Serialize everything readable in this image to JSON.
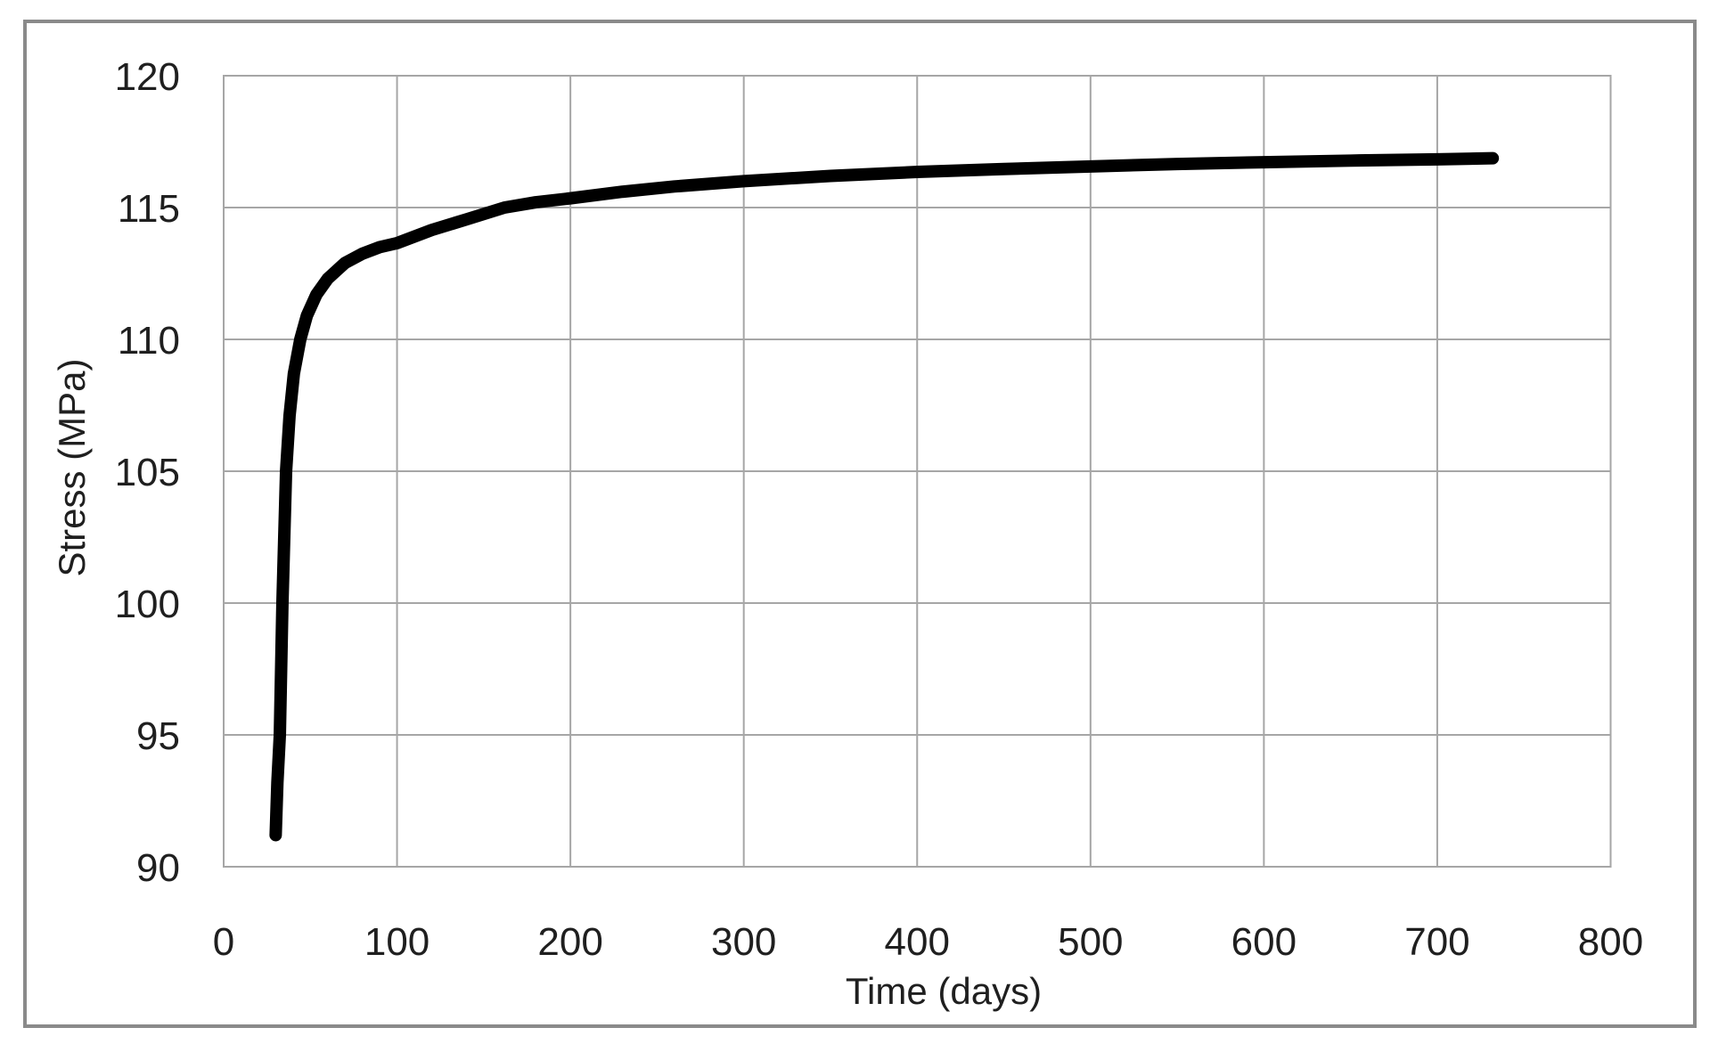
{
  "chart_data": {
    "type": "line",
    "title": "",
    "xlabel": "Time (days)",
    "ylabel": "Stress (MPa)",
    "xlim": [
      0,
      800
    ],
    "ylim": [
      90,
      120
    ],
    "xticks": [
      0,
      100,
      200,
      300,
      400,
      500,
      600,
      700,
      800
    ],
    "yticks": [
      90,
      95,
      100,
      105,
      110,
      115,
      120
    ],
    "grid": true,
    "legend": false,
    "series": [
      {
        "name": "Stress",
        "color": "#000000",
        "points": [
          [
            30,
            91.2
          ],
          [
            31,
            93.2
          ],
          [
            32.4,
            95.0
          ],
          [
            33.9,
            100.0
          ],
          [
            36,
            105.0
          ],
          [
            38,
            107.1
          ],
          [
            40.5,
            108.7
          ],
          [
            44.2,
            110.0
          ],
          [
            48,
            110.9
          ],
          [
            53.5,
            111.7
          ],
          [
            60,
            112.3
          ],
          [
            70,
            112.9
          ],
          [
            80,
            113.25
          ],
          [
            90,
            113.5
          ],
          [
            100,
            113.65
          ],
          [
            120,
            114.15
          ],
          [
            140,
            114.55
          ],
          [
            162,
            115.0
          ],
          [
            180,
            115.2
          ],
          [
            200,
            115.35
          ],
          [
            230,
            115.6
          ],
          [
            260,
            115.8
          ],
          [
            300,
            116.0
          ],
          [
            350,
            116.2
          ],
          [
            400,
            116.35
          ],
          [
            450,
            116.46
          ],
          [
            500,
            116.56
          ],
          [
            550,
            116.65
          ],
          [
            600,
            116.72
          ],
          [
            650,
            116.78
          ],
          [
            700,
            116.83
          ],
          [
            732,
            116.87
          ]
        ]
      }
    ]
  },
  "colors": {
    "curve": "#000000",
    "gridline": "#a6a6a6",
    "plot_border": "#a6a6a6",
    "frame_border": "#8a8a8a",
    "text": "#1f1f1f",
    "background": "#ffffff"
  }
}
